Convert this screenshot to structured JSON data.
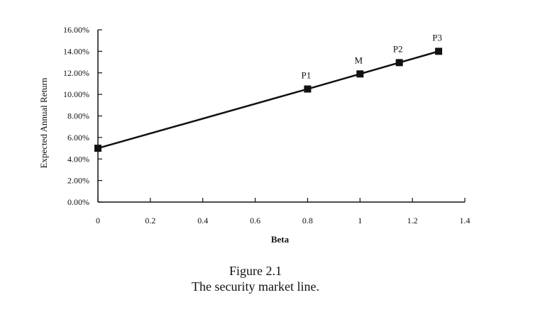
{
  "chart_data": {
    "type": "line",
    "title": "",
    "xlabel": "Beta",
    "ylabel": "Expected Annual Return",
    "xlim": [
      0,
      1.4
    ],
    "ylim": [
      0,
      0.16
    ],
    "x_ticks": [
      "0",
      "0.2",
      "0.4",
      "0.6",
      "0.8",
      "1",
      "1.2",
      "1.4"
    ],
    "y_ticks": [
      "0.00%",
      "2.00%",
      "4.00%",
      "6.00%",
      "8.00%",
      "10.00%",
      "12.00%",
      "14.00%",
      "16.00%"
    ],
    "grid": false,
    "series": [
      {
        "x": [
          0,
          0.8,
          1,
          1.15,
          1.3
        ],
        "y": [
          0.05,
          0.105,
          0.119,
          0.1295,
          0.14
        ],
        "point_labels": [
          "",
          "P1",
          "M",
          "P2",
          "P3"
        ]
      }
    ]
  },
  "caption": {
    "line1": "Figure 2.1",
    "line2": "The security market line."
  }
}
